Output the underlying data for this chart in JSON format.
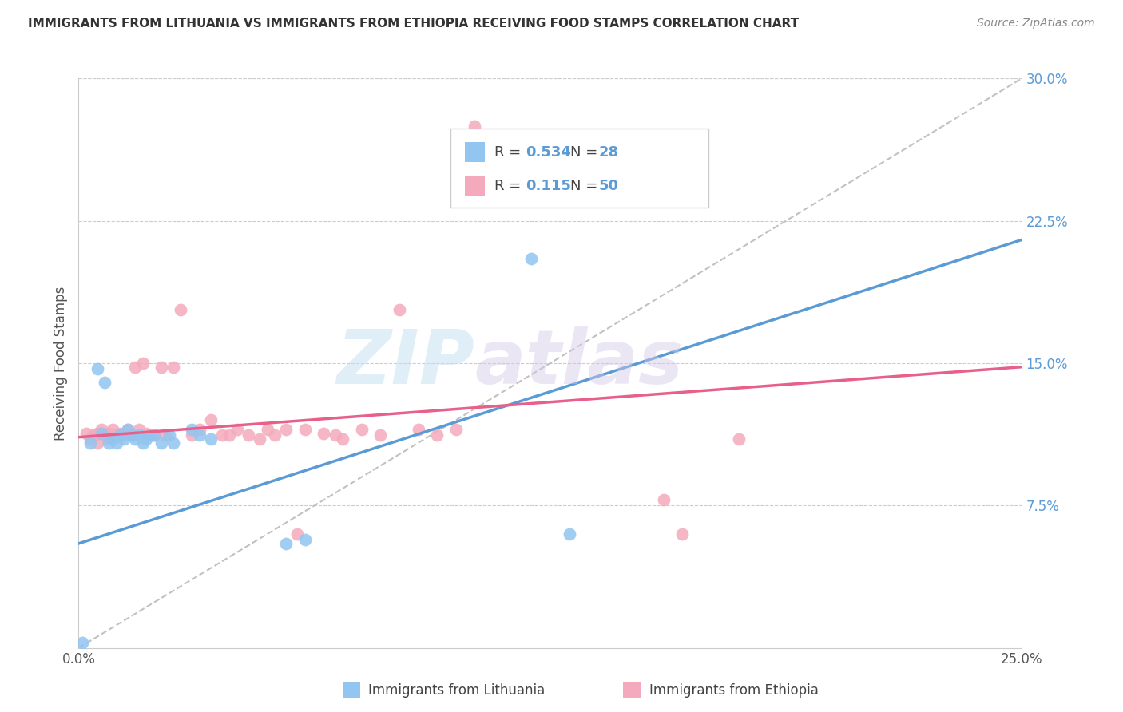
{
  "title": "IMMIGRANTS FROM LITHUANIA VS IMMIGRANTS FROM ETHIOPIA RECEIVING FOOD STAMPS CORRELATION CHART",
  "source": "Source: ZipAtlas.com",
  "ylabel": "Receiving Food Stamps",
  "xlim": [
    0.0,
    0.25
  ],
  "ylim": [
    0.0,
    0.3
  ],
  "xticks": [
    0.0,
    0.05,
    0.1,
    0.15,
    0.2,
    0.25
  ],
  "xticklabels": [
    "0.0%",
    "",
    "",
    "",
    "",
    "25.0%"
  ],
  "yticks_right": [
    0.075,
    0.15,
    0.225,
    0.3
  ],
  "ytick_right_labels": [
    "7.5%",
    "15.0%",
    "22.5%",
    "30.0%"
  ],
  "color_lithuania": "#92C5F0",
  "color_ethiopia": "#F4AABC",
  "color_trend_lithuania": "#5B9BD5",
  "color_trend_ethiopia": "#E8608A",
  "color_diagonal": "#BBBBBB",
  "watermark_zip": "ZIP",
  "watermark_atlas": "atlas",
  "background_color": "#FFFFFF",
  "lith_trend_x": [
    0.0,
    0.25
  ],
  "lith_trend_y": [
    0.055,
    0.215
  ],
  "eth_trend_x": [
    0.0,
    0.25
  ],
  "eth_trend_y": [
    0.111,
    0.148
  ],
  "lithuania_x": [
    0.001,
    0.003,
    0.005,
    0.006,
    0.007,
    0.008,
    0.009,
    0.01,
    0.011,
    0.012,
    0.013,
    0.014,
    0.015,
    0.016,
    0.017,
    0.018,
    0.019,
    0.02,
    0.022,
    0.024,
    0.025,
    0.03,
    0.032,
    0.035,
    0.055,
    0.06,
    0.12,
    0.13
  ],
  "lithuania_y": [
    0.003,
    0.108,
    0.147,
    0.113,
    0.14,
    0.108,
    0.11,
    0.108,
    0.112,
    0.11,
    0.115,
    0.112,
    0.11,
    0.112,
    0.108,
    0.11,
    0.112,
    0.112,
    0.108,
    0.112,
    0.108,
    0.115,
    0.112,
    0.11,
    0.055,
    0.057,
    0.205,
    0.06
  ],
  "ethiopia_x": [
    0.002,
    0.003,
    0.004,
    0.005,
    0.005,
    0.006,
    0.007,
    0.008,
    0.008,
    0.009,
    0.01,
    0.011,
    0.012,
    0.013,
    0.014,
    0.015,
    0.016,
    0.017,
    0.018,
    0.02,
    0.022,
    0.023,
    0.025,
    0.027,
    0.03,
    0.032,
    0.035,
    0.038,
    0.04,
    0.042,
    0.045,
    0.048,
    0.05,
    0.052,
    0.055,
    0.058,
    0.06,
    0.065,
    0.068,
    0.07,
    0.075,
    0.08,
    0.085,
    0.09,
    0.095,
    0.1,
    0.105,
    0.155,
    0.16,
    0.175
  ],
  "ethiopia_y": [
    0.113,
    0.11,
    0.112,
    0.108,
    0.113,
    0.115,
    0.112,
    0.11,
    0.113,
    0.115,
    0.112,
    0.113,
    0.112,
    0.115,
    0.112,
    0.148,
    0.115,
    0.15,
    0.113,
    0.112,
    0.148,
    0.112,
    0.148,
    0.178,
    0.112,
    0.115,
    0.12,
    0.112,
    0.112,
    0.115,
    0.112,
    0.11,
    0.115,
    0.112,
    0.115,
    0.06,
    0.115,
    0.113,
    0.112,
    0.11,
    0.115,
    0.112,
    0.178,
    0.115,
    0.112,
    0.115,
    0.275,
    0.078,
    0.06,
    0.11
  ]
}
